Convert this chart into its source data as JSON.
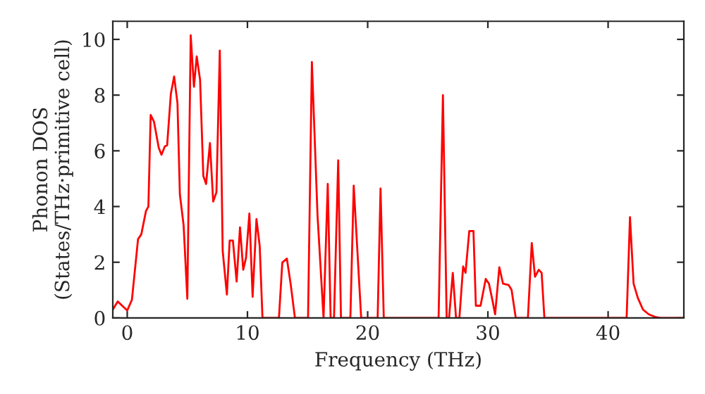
{
  "chart_data": {
    "type": "line",
    "xlabel": "Frequency (THz)",
    "ylabel": "Phonon DOS\n(States/THz·primitive cell)",
    "xlim": [
      -1.2,
      46.3
    ],
    "ylim": [
      0,
      10.65
    ],
    "xticks": [
      0,
      10,
      20,
      30,
      40
    ],
    "yticks": [
      0,
      2,
      4,
      6,
      8,
      10
    ],
    "grid": false,
    "legend": false,
    "series": [
      {
        "color": "#ff0000",
        "x": [
          -1.2,
          -0.79,
          0,
          0.39,
          0.9,
          1.17,
          1.56,
          1.76,
          1.95,
          2.23,
          2.62,
          2.85,
          3.13,
          3.32,
          3.63,
          3.9,
          4.18,
          4.38,
          4.69,
          5.0,
          5.28,
          5.55,
          5.78,
          6.06,
          6.33,
          6.56,
          6.88,
          7.15,
          7.42,
          7.7,
          7.94,
          8.29,
          8.52,
          8.79,
          9.1,
          9.38,
          9.65,
          9.88,
          10.16,
          10.43,
          10.75,
          11.02,
          11.25,
          12.62,
          12.9,
          13.28,
          13.6,
          13.95,
          15.04,
          15.36,
          15.83,
          16.33,
          16.68,
          16.92,
          17.2,
          17.55,
          17.78,
          18.56,
          18.84,
          19.46,
          20.83,
          21.07,
          21.34,
          25.9,
          26.26,
          26.57,
          26.77,
          27.08,
          27.35,
          27.63,
          27.94,
          28.14,
          28.45,
          28.8,
          29.0,
          29.39,
          29.82,
          30.09,
          30.36,
          30.6,
          30.95,
          31.26,
          31.73,
          31.97,
          32.32,
          33.33,
          33.65,
          33.92,
          34.23,
          34.47,
          34.7,
          41.54,
          41.82,
          42.12,
          42.47,
          42.9,
          43.38,
          43.96,
          44.35,
          46.3
        ],
        "values": [
          0.3,
          0.59,
          0.27,
          0.65,
          2.83,
          3.0,
          3.84,
          4.0,
          7.29,
          7.04,
          6.11,
          5.86,
          6.16,
          6.2,
          8.05,
          8.67,
          7.71,
          4.43,
          3.33,
          0.69,
          10.15,
          8.3,
          9.39,
          8.55,
          5.1,
          4.81,
          6.28,
          4.18,
          4.51,
          9.6,
          2.41,
          0.84,
          2.78,
          2.78,
          1.31,
          3.25,
          1.73,
          2.16,
          3.75,
          0.76,
          3.55,
          2.58,
          0,
          0,
          1.99,
          2.13,
          1.2,
          0,
          0,
          9.19,
          3.67,
          0,
          4.81,
          0,
          0,
          5.66,
          0,
          0,
          4.75,
          0,
          0,
          4.65,
          0,
          0,
          8.0,
          0,
          0,
          1.62,
          0,
          0,
          1.85,
          1.62,
          3.12,
          3.12,
          0.44,
          0.44,
          1.4,
          1.23,
          0.67,
          0.13,
          1.82,
          1.23,
          1.18,
          1.01,
          0,
          0,
          2.69,
          1.48,
          1.73,
          1.62,
          0,
          0,
          3.62,
          1.23,
          0.72,
          0.3,
          0.13,
          0.03,
          0,
          0
        ]
      }
    ]
  }
}
